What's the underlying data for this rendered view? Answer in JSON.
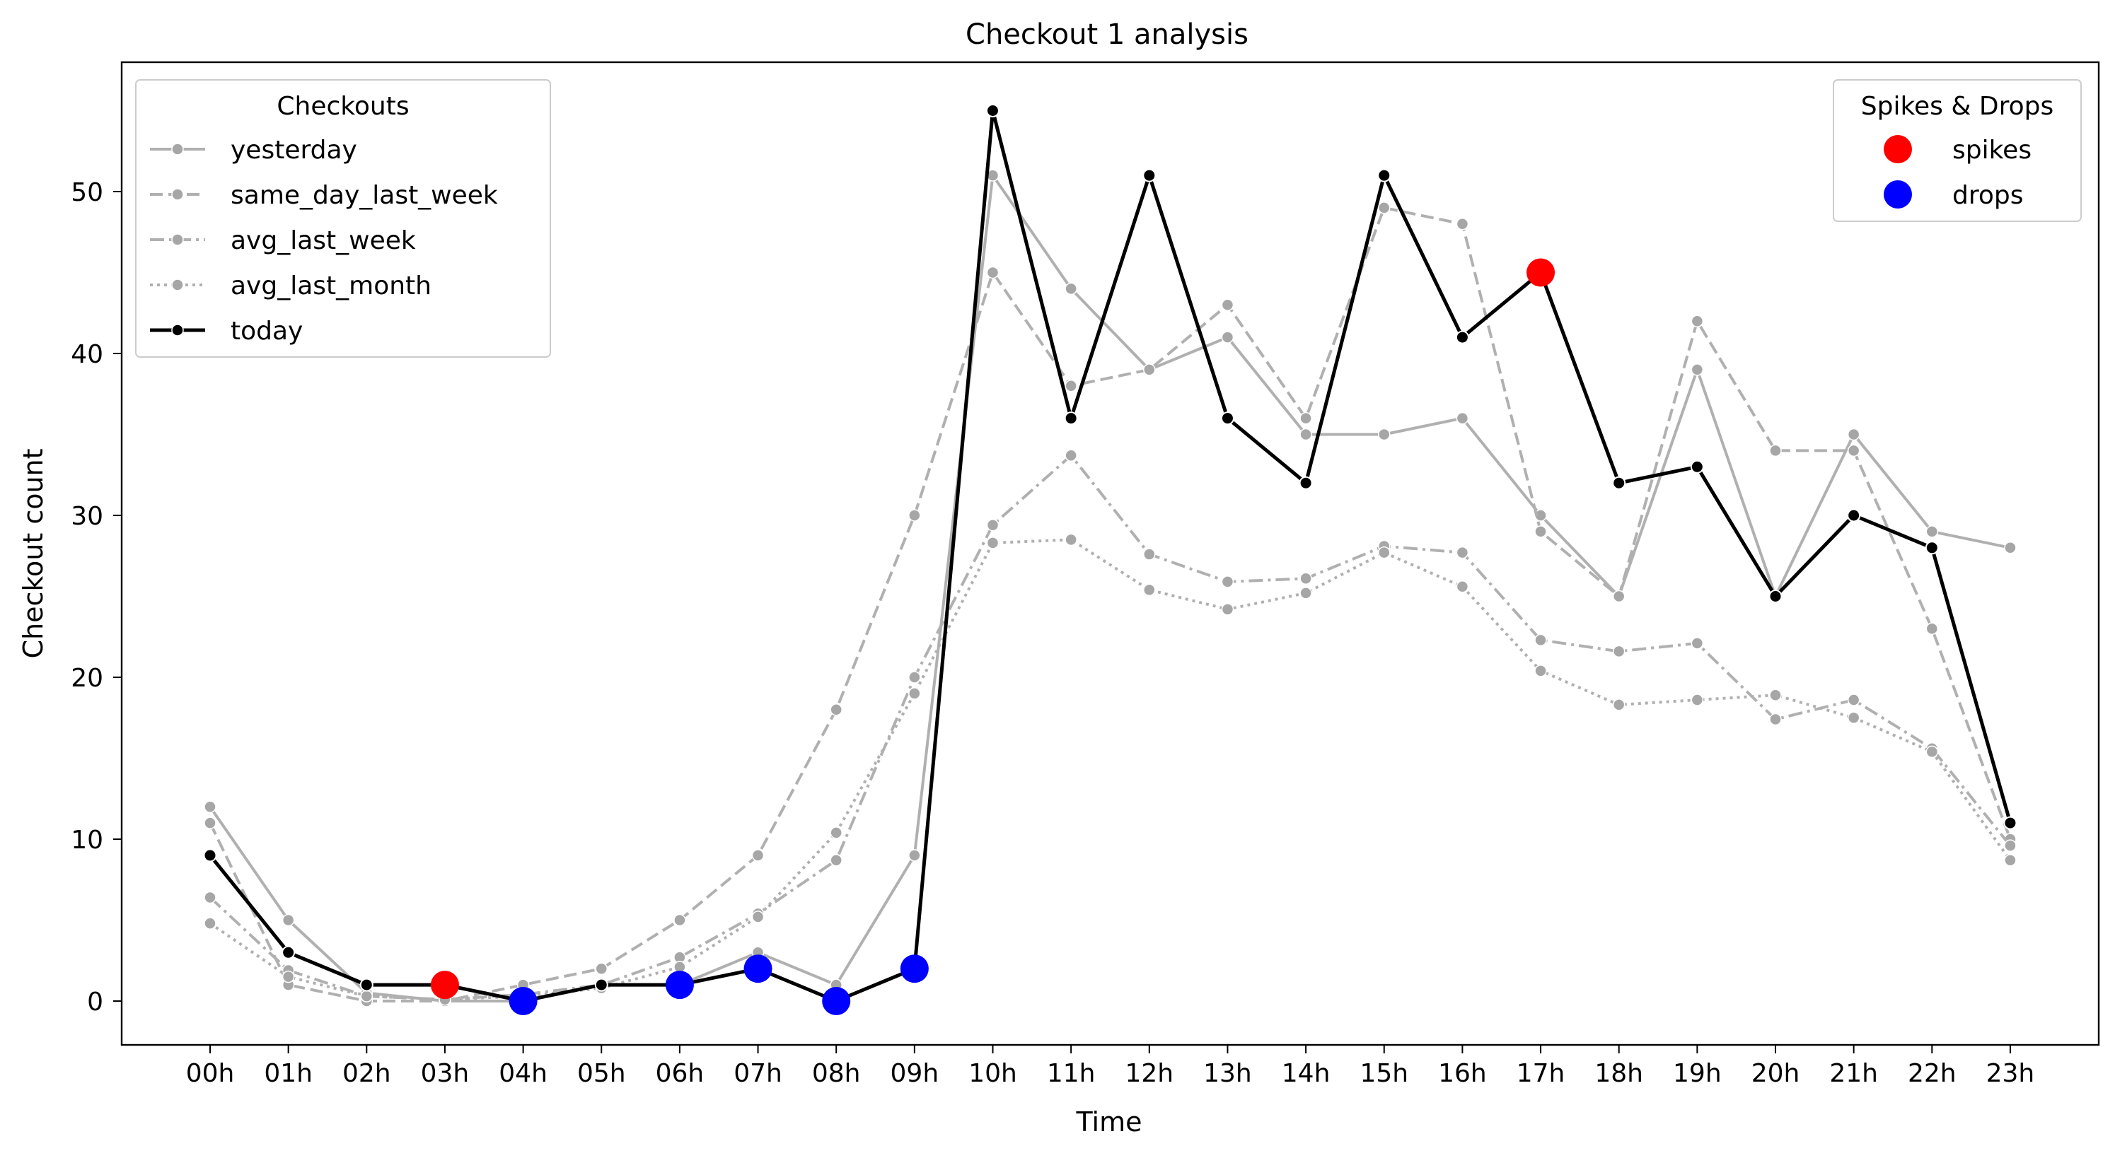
{
  "chart_data": {
    "type": "line",
    "title": "Checkout 1 analysis",
    "xlabel": "Time",
    "ylabel": "Checkout count",
    "categories": [
      "00h",
      "01h",
      "02h",
      "03h",
      "04h",
      "05h",
      "06h",
      "07h",
      "08h",
      "09h",
      "10h",
      "11h",
      "12h",
      "13h",
      "14h",
      "15h",
      "16h",
      "17h",
      "18h",
      "19h",
      "20h",
      "21h",
      "22h",
      "23h"
    ],
    "ylim": [
      -2.7,
      57.7
    ],
    "yticks": [
      0,
      10,
      20,
      30,
      40,
      50
    ],
    "grid": false,
    "legend_title": "Checkouts",
    "legend_placement": "upper-left",
    "series": [
      {
        "name": "yesterday",
        "style": "solid",
        "color": "#b0b0b0",
        "values": [
          12,
          5,
          0.5,
          0,
          0,
          1,
          1,
          3,
          1,
          9,
          51,
          44,
          39,
          41,
          35,
          35,
          36,
          30,
          25,
          39,
          25,
          35,
          29,
          28
        ]
      },
      {
        "name": "same_day_last_week",
        "style": "dashed",
        "color": "#b0b0b0",
        "values": [
          11,
          1,
          0,
          0,
          1,
          2,
          5,
          9,
          18,
          30,
          45,
          38,
          39,
          43,
          36,
          49,
          48,
          29,
          25,
          42,
          34,
          34,
          23,
          10
        ]
      },
      {
        "name": "avg_last_week",
        "style": "dashdot",
        "color": "#b0b0b0",
        "values": [
          6.4,
          1.9,
          0.3,
          0.1,
          0.4,
          1.0,
          2.7,
          5.4,
          8.7,
          20.0,
          29.4,
          33.7,
          27.6,
          25.9,
          26.1,
          28.1,
          27.7,
          22.3,
          21.6,
          22.1,
          17.4,
          18.6,
          15.6,
          9.6
        ]
      },
      {
        "name": "avg_last_month",
        "style": "dotted",
        "color": "#b0b0b0",
        "values": [
          4.8,
          1.5,
          0.3,
          0.1,
          0.3,
          0.8,
          2.1,
          5.2,
          10.4,
          19.0,
          28.3,
          28.5,
          25.4,
          24.2,
          25.2,
          27.7,
          25.6,
          20.4,
          18.3,
          18.6,
          18.9,
          17.5,
          15.4,
          8.7
        ]
      },
      {
        "name": "today",
        "style": "solid",
        "color": "#000000",
        "values": [
          9,
          3,
          1,
          1,
          0,
          1,
          1,
          2,
          0,
          2,
          55,
          36,
          51,
          36,
          32,
          51,
          41,
          45,
          32,
          33,
          25,
          30,
          28,
          11
        ]
      }
    ],
    "markers_legend_title": "Spikes & Drops",
    "markers_legend_placement": "upper-right",
    "markers": [
      {
        "name": "spikes",
        "color": "#ff0000",
        "points": [
          {
            "x": "03h",
            "y": 1
          },
          {
            "x": "17h",
            "y": 45
          }
        ]
      },
      {
        "name": "drops",
        "color": "#0000ff",
        "points": [
          {
            "x": "04h",
            "y": 0
          },
          {
            "x": "06h",
            "y": 1
          },
          {
            "x": "07h",
            "y": 2
          },
          {
            "x": "08h",
            "y": 0
          },
          {
            "x": "09h",
            "y": 2
          }
        ]
      }
    ]
  }
}
